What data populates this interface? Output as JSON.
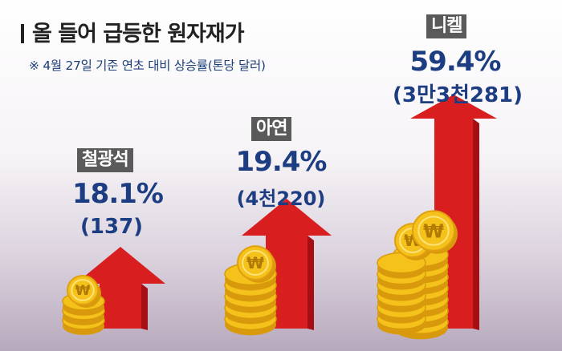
{
  "title": "올 들어 급등한 원자재가",
  "note": "※ 4월 27일 기준 연초 대비 상승률(톤당 달러)",
  "chart_data": {
    "type": "bar",
    "categories": [
      "철광석",
      "아연",
      "니켈"
    ],
    "values": [
      18.1,
      19.4,
      59.4
    ],
    "value_labels": [
      "18.1%",
      "19.4%",
      "59.4%"
    ],
    "price_labels": [
      "(137)",
      "(4천220)",
      "(3만3천281)"
    ],
    "prices": [
      137,
      4220,
      33281
    ],
    "unit": "%",
    "colors": {
      "arrow": "#d81e1e",
      "arrow_dark": "#a50f13",
      "coin": "#f4c21b",
      "coin_dark": "#d89a0c",
      "label": "#1d3d82",
      "tag_bg": "#5a5a5a"
    }
  }
}
